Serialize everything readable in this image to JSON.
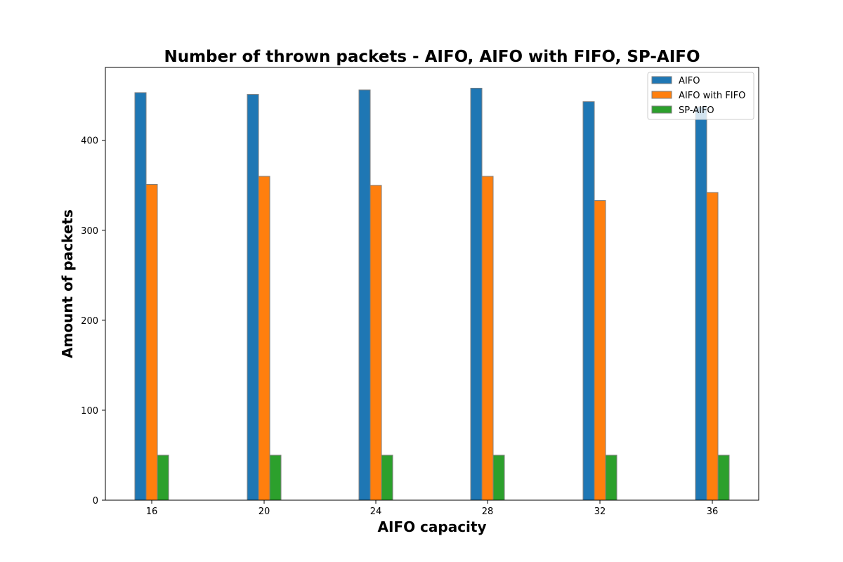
{
  "chart_data": {
    "type": "bar",
    "title": "Number of thrown packets - AIFO, AIFO with FIFO, SP-AIFO",
    "xlabel": "AIFO capacity",
    "ylabel": "Amount of packets",
    "categories": [
      "16",
      "20",
      "24",
      "28",
      "32",
      "36"
    ],
    "series": [
      {
        "name": "AIFO",
        "color": "#1f77b4",
        "values": [
          453,
          451,
          456,
          458,
          443,
          437
        ]
      },
      {
        "name": "AIFO with FIFO",
        "color": "#ff7f0e",
        "values": [
          351,
          360,
          350,
          360,
          333,
          342
        ]
      },
      {
        "name": "SP-AIFO",
        "color": "#2ca02c",
        "values": [
          50,
          50,
          50,
          50,
          50,
          50
        ]
      }
    ],
    "ylim": [
      0,
      481
    ],
    "yticks": [
      0,
      100,
      200,
      300,
      400
    ],
    "grid": false,
    "legend_position": "top-right"
  }
}
